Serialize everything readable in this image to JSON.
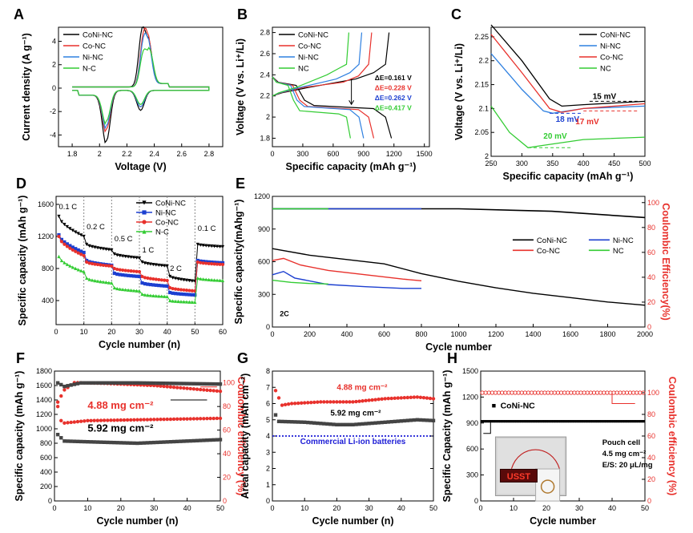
{
  "panels": [
    {
      "id": "A",
      "label": "A",
      "xlabel": "Voltage (V)",
      "ylabel": "Current density (A g⁻¹)",
      "xlim": [
        1.7,
        2.9
      ],
      "ylim": [
        -5,
        5.2
      ],
      "xticks": [
        1.8,
        2.0,
        2.2,
        2.4,
        2.6,
        2.8
      ],
      "yticks": [
        -4,
        -2,
        0,
        2,
        4
      ],
      "series": [
        {
          "name": "CoNi-NC",
          "color": "#000000",
          "kind": "cv",
          "cathodic": [
            [
              2.3,
              -1.7
            ],
            [
              2.05,
              -4.3
            ]
          ],
          "anodic": [
            [
              2.31,
              4.6
            ],
            [
              2.36,
              3.3
            ]
          ]
        },
        {
          "name": "Co-NC",
          "color": "#e8312c",
          "kind": "cv",
          "cathodic": [
            [
              2.3,
              -1.4
            ],
            [
              2.05,
              -3.3
            ]
          ],
          "anodic": [
            [
              2.32,
              3.9
            ],
            [
              2.36,
              3.0
            ]
          ]
        },
        {
          "name": "Ni-NC",
          "color": "#2f80e0",
          "kind": "cv",
          "cathodic": [
            [
              2.3,
              -1.4
            ],
            [
              2.05,
              -3.0
            ]
          ],
          "anodic": [
            [
              2.32,
              3.5
            ],
            [
              2.36,
              2.8
            ]
          ]
        },
        {
          "name": "N-C",
          "color": "#33cc33",
          "kind": "cv",
          "cathodic": [
            [
              2.3,
              -1.2
            ],
            [
              2.05,
              -2.6
            ]
          ],
          "anodic": [
            [
              2.32,
              2.8
            ],
            [
              2.37,
              2.5
            ]
          ]
        }
      ]
    },
    {
      "id": "B",
      "label": "B",
      "xlabel": "Specific capacity (mAh g⁻¹)",
      "ylabel": "Voltage (V vs. Li⁺/Li)",
      "xlim": [
        0,
        1550
      ],
      "ylim": [
        1.72,
        2.85
      ],
      "xticks": [
        0,
        300,
        600,
        900,
        1200,
        1500
      ],
      "yticks": [
        1.8,
        2.0,
        2.2,
        2.4,
        2.6,
        2.8
      ],
      "series": [
        {
          "name": "CoNi-NC",
          "color": "#000000",
          "kind": "gcd",
          "cap": 1175,
          "hdis": 2.11,
          "hch": 2.36,
          "dE": "ΔE=0.161 V"
        },
        {
          "name": "Co-NC",
          "color": "#e8312c",
          "kind": "gcd",
          "cap": 1000,
          "hdis": 2.1,
          "hch": 2.33,
          "dE": "ΔE=0.228 V"
        },
        {
          "name": "Ni-NC",
          "color": "#2f80e0",
          "kind": "gcd",
          "cap": 900,
          "hdis": 2.1,
          "hch": 2.36,
          "dE": "ΔE=0.262 V"
        },
        {
          "name": "NC",
          "color": "#33cc33",
          "kind": "gcd",
          "cap": 770,
          "hdis": 2.06,
          "hch": 2.4,
          "dE": "ΔE=0.417 V"
        }
      ]
    },
    {
      "id": "C",
      "label": "C",
      "xlabel": "Specific capacity (mAh g⁻¹)",
      "ylabel": "Voltage (V vs. Li⁺/Li)",
      "xlim": [
        250,
        500
      ],
      "ylim": [
        2.0,
        2.27
      ],
      "xticks": [
        250,
        300,
        350,
        400,
        450,
        500
      ],
      "yticks": [
        2.0,
        2.05,
        2.1,
        2.15,
        2.2,
        2.25
      ],
      "series": [
        {
          "name": "CoNi-NC",
          "color": "#000000",
          "points": [
            [
              250,
              2.275
            ],
            [
              300,
              2.2
            ],
            [
              345,
              2.12
            ],
            [
              365,
              2.105
            ],
            [
              400,
              2.108
            ],
            [
              500,
              2.115
            ]
          ]
        },
        {
          "name": "Ni-NC",
          "color": "#2f80e0",
          "points": [
            [
              250,
              2.215
            ],
            [
              300,
              2.14
            ],
            [
              335,
              2.095
            ],
            [
              350,
              2.09
            ],
            [
              400,
              2.1
            ],
            [
              500,
              2.105
            ]
          ]
        },
        {
          "name": "Co-NC",
          "color": "#e8312c",
          "points": [
            [
              250,
              2.255
            ],
            [
              300,
              2.175
            ],
            [
              345,
              2.1
            ],
            [
              365,
              2.092
            ],
            [
              400,
              2.1
            ],
            [
              500,
              2.11
            ]
          ]
        },
        {
          "name": "NC",
          "color": "#33cc33",
          "points": [
            [
              250,
              2.105
            ],
            [
              280,
              2.05
            ],
            [
              310,
              2.018
            ],
            [
              330,
              2.022
            ],
            [
              400,
              2.035
            ],
            [
              500,
              2.04
            ]
          ]
        }
      ],
      "annotations": [
        {
          "text": "15 mV",
          "color": "#000000",
          "x": 415,
          "y": 2.12
        },
        {
          "text": "18 mV",
          "color": "#1c3fd0",
          "x": 355,
          "y": 2.072
        },
        {
          "text": "17 mV",
          "color": "#e8312c",
          "x": 387,
          "y": 2.067
        },
        {
          "text": "20 mV",
          "color": "#33cc33",
          "x": 335,
          "y": 2.037
        }
      ]
    },
    {
      "id": "D",
      "label": "D",
      "xlabel": "Cycle number (n)",
      "ylabel": "Specific capacity (mAh g⁻¹)",
      "xlim": [
        0,
        60
      ],
      "ylim": [
        100,
        1700
      ],
      "xticks": [
        0,
        10,
        20,
        30,
        40,
        50,
        60
      ],
      "yticks": [
        400,
        800,
        1200,
        1600
      ],
      "rates": [
        "0.1 C",
        "0.2 C",
        "0.5 C",
        "1 C",
        "2 C",
        "0.1 C"
      ],
      "series": [
        {
          "name": "CoNi-NC",
          "color": "#000000",
          "marker": "tri-down",
          "steps": [
            [
              1450,
              1200
            ],
            [
              1100,
              1030
            ],
            [
              980,
              930
            ],
            [
              880,
              830
            ],
            [
              700,
              640
            ],
            [
              1100,
              1070
            ]
          ]
        },
        {
          "name": "Ni-NC",
          "color": "#1c3fd0",
          "marker": "square",
          "steps": [
            [
              1220,
              1000
            ],
            [
              900,
              840
            ],
            [
              740,
              700
            ],
            [
              620,
              580
            ],
            [
              500,
              470
            ],
            [
              900,
              870
            ]
          ]
        },
        {
          "name": "Co-NC",
          "color": "#e8312c",
          "marker": "circle",
          "steps": [
            [
              1200,
              960
            ],
            [
              880,
              830
            ],
            [
              800,
              760
            ],
            [
              700,
              650
            ],
            [
              560,
              520
            ],
            [
              880,
              850
            ]
          ]
        },
        {
          "name": "N-C",
          "color": "#33cc33",
          "marker": "tri-up",
          "steps": [
            [
              950,
              760
            ],
            [
              680,
              620
            ],
            [
              560,
              520
            ],
            [
              480,
              450
            ],
            [
              400,
              380
            ],
            [
              680,
              650
            ]
          ]
        }
      ]
    },
    {
      "id": "E",
      "label": "E",
      "xlabel": "Cycle number",
      "ylabel": "Specific capacity(mAhg⁻¹)",
      "y2label": "Coulombic Efficiency(%)",
      "xlim": [
        0,
        2000
      ],
      "ylim": [
        0,
        1200
      ],
      "y2lim": [
        0,
        105
      ],
      "xticks": [
        0,
        200,
        400,
        600,
        800,
        1000,
        1200,
        1400,
        1600,
        1800,
        2000
      ],
      "yticks": [
        0,
        300,
        600,
        900,
        1200
      ],
      "y2ticks": [
        0,
        20,
        40,
        60,
        80,
        100
      ],
      "rate_note": "2C",
      "series": [
        {
          "name": "CoNi-NC",
          "color": "#000000",
          "points": [
            [
              0,
              720
            ],
            [
              200,
              660
            ],
            [
              400,
              620
            ],
            [
              600,
              580
            ],
            [
              800,
              490
            ],
            [
              1000,
              420
            ],
            [
              1200,
              360
            ],
            [
              1400,
              310
            ],
            [
              1600,
              270
            ],
            [
              1800,
              230
            ],
            [
              2000,
              200
            ]
          ],
          "ce": [
            [
              0,
              95
            ],
            [
              1000,
              95
            ],
            [
              1500,
              93
            ],
            [
              2000,
              88
            ]
          ]
        },
        {
          "name": "Ni-NC",
          "color": "#1c3fd0",
          "points": [
            [
              0,
              480
            ],
            [
              60,
              510
            ],
            [
              120,
              450
            ],
            [
              300,
              390
            ],
            [
              500,
              370
            ],
            [
              700,
              355
            ],
            [
              800,
              355
            ]
          ],
          "ce": [
            [
              0,
              95
            ],
            [
              800,
              95
            ]
          ]
        },
        {
          "name": "Co-NC",
          "color": "#e8312c",
          "points": [
            [
              0,
              610
            ],
            [
              60,
              630
            ],
            [
              150,
              570
            ],
            [
              300,
              520
            ],
            [
              500,
              480
            ],
            [
              700,
              440
            ],
            [
              800,
              425
            ]
          ],
          "ce": []
        },
        {
          "name": "NC",
          "color": "#33cc33",
          "points": [
            [
              0,
              430
            ],
            [
              100,
              410
            ],
            [
              200,
              400
            ],
            [
              300,
              395
            ]
          ],
          "ce": [
            [
              0,
              95
            ],
            [
              300,
              95
            ]
          ]
        }
      ]
    },
    {
      "id": "F",
      "label": "F",
      "xlabel": "Cycle number (n)",
      "ylabel": "Specific capacity (mAh g⁻¹)",
      "y2label": "Coulombic efficiency (%)",
      "xlim": [
        0,
        50
      ],
      "ylim": [
        0,
        1800
      ],
      "y2lim": [
        0,
        110
      ],
      "xticks": [
        0,
        10,
        20,
        30,
        40,
        50
      ],
      "yticks": [
        0,
        200,
        400,
        600,
        800,
        1000,
        1200,
        1400,
        1600,
        1800
      ],
      "y2ticks": [
        0,
        20,
        40,
        60,
        80,
        100
      ],
      "series": [
        {
          "name": "4.88 mg cm⁻²",
          "color": "#e8312c",
          "cap": [
            [
              1,
              1370
            ],
            [
              3,
              1540
            ],
            [
              6,
              1640
            ],
            [
              15,
              1630
            ],
            [
              30,
              1600
            ],
            [
              50,
              1520
            ]
          ],
          "ce": [
            [
              1,
              80
            ],
            [
              2,
              68
            ],
            [
              3,
              66
            ],
            [
              10,
              68
            ],
            [
              30,
              69
            ],
            [
              50,
              70
            ]
          ]
        },
        {
          "name": "5.92 mg cm⁻²",
          "color": "#444444",
          "cap": [
            [
              1,
              920
            ],
            [
              3,
              830
            ],
            [
              10,
              820
            ],
            [
              25,
              800
            ],
            [
              40,
              830
            ],
            [
              50,
              850
            ]
          ],
          "ce": [
            [
              1,
              100
            ],
            [
              3,
              97
            ],
            [
              8,
              100
            ],
            [
              25,
              100
            ],
            [
              50,
              99
            ]
          ]
        }
      ],
      "labels": [
        "4.88 mg cm⁻²",
        "5.92 mg cm⁻²"
      ]
    },
    {
      "id": "G",
      "label": "G",
      "xlabel": "Cycle number (n)",
      "ylabel": "Areal capacity (mAh cm⁻²)",
      "y2label": "",
      "xlim": [
        0,
        50
      ],
      "ylim": [
        0,
        8
      ],
      "y2lim": [
        0,
        110
      ],
      "xticks": [
        0,
        10,
        20,
        30,
        40,
        50
      ],
      "yticks": [
        0,
        1,
        2,
        3,
        4,
        5,
        6,
        7,
        8
      ],
      "series": [
        {
          "name": "4.88 mg cm⁻²",
          "color": "#e8312c",
          "points": [
            [
              1,
              6.8
            ],
            [
              3,
              5.9
            ],
            [
              6,
              6.0
            ],
            [
              15,
              6.1
            ],
            [
              25,
              6.1
            ],
            [
              35,
              6.3
            ],
            [
              45,
              6.4
            ],
            [
              50,
              6.3
            ]
          ]
        },
        {
          "name": "5.92 mg cm⁻²",
          "color": "#444444",
          "points": [
            [
              1,
              5.3
            ],
            [
              2,
              4.9
            ],
            [
              10,
              4.85
            ],
            [
              20,
              4.7
            ],
            [
              25,
              4.7
            ],
            [
              35,
              4.85
            ],
            [
              45,
              5.0
            ],
            [
              50,
              4.95
            ]
          ]
        }
      ],
      "reference": {
        "name": "Commercial Li-ion batteries",
        "value": 4.0,
        "color": "#1c1cd6"
      },
      "labels": [
        "4.88 mg cm⁻²",
        "5.92 mg cm⁻²"
      ]
    },
    {
      "id": "H",
      "label": "H",
      "xlabel": "Cycle number",
      "ylabel": "Specific Capacity (mAh g⁻¹)",
      "y2label": "Coulombic efficiency (%)",
      "xlim": [
        0,
        50
      ],
      "ylim": [
        0,
        1500
      ],
      "y2lim": [
        0,
        120
      ],
      "xticks": [
        0,
        10,
        20,
        30,
        40,
        50
      ],
      "yticks": [
        0,
        300,
        600,
        900,
        1200,
        1500
      ],
      "y2ticks": [
        0,
        20,
        40,
        60,
        80,
        100
      ],
      "series": [
        {
          "name": "CoNi-NC",
          "color": "#000000",
          "cap": 920,
          "ce": 100
        }
      ],
      "photo_text": "USST",
      "note_lines": [
        "Pouch cell",
        "4.5 mg cm⁻²",
        "E/S: 20 μL/mg"
      ]
    }
  ],
  "colors": {
    "black": "#000000",
    "red": "#e8312c",
    "blue": "#2f80e0",
    "green": "#33cc33"
  }
}
